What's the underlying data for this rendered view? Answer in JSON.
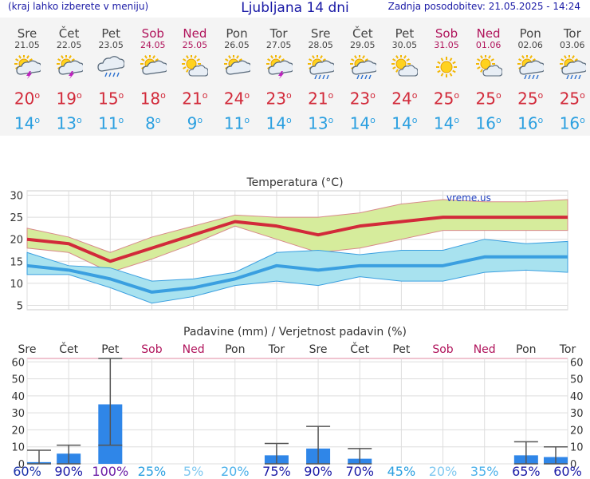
{
  "header": {
    "left_note": "(kraj lahko izberete v meniju)",
    "title": "Ljubljana 14 dni",
    "updated": "Zadnja posodobitev: 21.05.2025 - 14:24"
  },
  "colors": {
    "max": "#d22a3a",
    "min": "#2a9fe0",
    "weekend": "#b0135b",
    "bar": "#2f86e8"
  },
  "days": [
    {
      "name": "Sre",
      "date": "21.05",
      "weekend": false,
      "icon": "sun-cloud-storm-icon",
      "max": "20",
      "min": "14",
      "label_color": "#1a33aa"
    },
    {
      "name": "Čet",
      "date": "22.05",
      "weekend": false,
      "icon": "sun-cloud-storm-icon",
      "max": "19",
      "min": "13",
      "label_color": "#1a1aa6"
    },
    {
      "name": "Pet",
      "date": "23.05",
      "weekend": false,
      "icon": "cloud-rain-icon",
      "max": "15",
      "min": "11",
      "label_color": "#6a1aa6"
    },
    {
      "name": "Sob",
      "date": "24.05",
      "weekend": true,
      "icon": "sun-cloud-icon",
      "max": "18",
      "min": "8",
      "label_color": "#2a9fe0"
    },
    {
      "name": "Ned",
      "date": "25.05",
      "weekend": true,
      "icon": "sun-small-cloud-icon",
      "max": "21",
      "min": "9",
      "label_color": "#7fc8f0"
    },
    {
      "name": "Pon",
      "date": "26.05",
      "weekend": false,
      "icon": "sun-cloud-icon",
      "max": "24",
      "min": "11",
      "label_color": "#4ab0ea"
    },
    {
      "name": "Tor",
      "date": "27.05",
      "weekend": false,
      "icon": "sun-cloud-storm-icon",
      "max": "23",
      "min": "14",
      "label_color": "#1a1aa6"
    },
    {
      "name": "Sre",
      "date": "28.05",
      "weekend": false,
      "icon": "sun-cloud-rain-icon",
      "max": "21",
      "min": "13",
      "label_color": "#1a1aa6"
    },
    {
      "name": "Čet",
      "date": "29.05",
      "weekend": false,
      "icon": "sun-cloud-rain-icon",
      "max": "23",
      "min": "14",
      "label_color": "#1a1aa6"
    },
    {
      "name": "Pet",
      "date": "30.05",
      "weekend": false,
      "icon": "sun-small-cloud-icon",
      "max": "24",
      "min": "14",
      "label_color": "#2a9fe0"
    },
    {
      "name": "Sob",
      "date": "31.05",
      "weekend": true,
      "icon": "sun-icon",
      "max": "25",
      "min": "14",
      "label_color": "#7fc8f0"
    },
    {
      "name": "Ned",
      "date": "01.06",
      "weekend": true,
      "icon": "sun-small-cloud-icon",
      "max": "25",
      "min": "16",
      "label_color": "#4ab0ea"
    },
    {
      "name": "Pon",
      "date": "02.06",
      "weekend": false,
      "icon": "sun-cloud-rain-icon",
      "max": "25",
      "min": "16",
      "label_color": "#1a1aa6"
    },
    {
      "name": "Tor",
      "date": "03.06",
      "weekend": false,
      "icon": "sun-cloud-rain-icon",
      "max": "25",
      "min": "16",
      "label_color": "#1a1aa6"
    }
  ],
  "chart_data": [
    {
      "type": "line",
      "title": "Temperatura (°C)",
      "watermark": "vreme.us",
      "x": [
        "21.05",
        "22.05",
        "23.05",
        "24.05",
        "25.05",
        "26.05",
        "27.05",
        "28.05",
        "29.05",
        "30.05",
        "31.05",
        "01.06",
        "02.06",
        "03.06"
      ],
      "ylim": [
        4,
        31
      ],
      "yticks": [
        "5",
        "10",
        "15",
        "20",
        "25",
        "30"
      ],
      "series": [
        {
          "name": "max",
          "values": [
            20,
            19,
            15,
            18,
            21,
            24,
            23,
            21,
            23,
            24,
            25,
            25,
            25,
            25
          ]
        },
        {
          "name": "max_high",
          "values": [
            22.5,
            20.5,
            17,
            20.5,
            23,
            25.5,
            25,
            25,
            26,
            28,
            29,
            28.5,
            28.5,
            29
          ]
        },
        {
          "name": "max_low",
          "values": [
            18,
            17,
            12.5,
            15.5,
            19,
            23,
            20,
            17,
            18,
            20,
            22,
            22,
            22,
            22
          ]
        },
        {
          "name": "min",
          "values": [
            14,
            13,
            11,
            8,
            9,
            11,
            14,
            13,
            14,
            14,
            14,
            16,
            16,
            16
          ]
        },
        {
          "name": "min_high",
          "values": [
            17,
            14,
            13.5,
            10.5,
            11,
            12.5,
            17,
            17.5,
            16.5,
            17.5,
            17.5,
            20,
            19,
            19.5
          ]
        },
        {
          "name": "min_low",
          "values": [
            12,
            12,
            9,
            5.5,
            7,
            9.5,
            10.5,
            9.5,
            11.5,
            10.5,
            10.5,
            12.5,
            13,
            12.5
          ]
        }
      ]
    },
    {
      "type": "bar",
      "title": "Padavine (mm) / Verjetnost padavin (%)",
      "categories": [
        "Sre",
        "Čet",
        "Pet",
        "Sob",
        "Ned",
        "Pon",
        "Tor",
        "Sre",
        "Čet",
        "Pet",
        "Sob",
        "Ned",
        "Pon",
        "Tor"
      ],
      "ylim": [
        0,
        62
      ],
      "yticks": [
        "0",
        "10",
        "20",
        "30",
        "40",
        "50",
        "60"
      ],
      "values": [
        1,
        6,
        35,
        0,
        0,
        0,
        5,
        9,
        3,
        0,
        0,
        0,
        5,
        4
      ],
      "error_low": [
        0,
        0,
        11,
        0,
        0,
        0,
        0,
        0,
        0,
        0,
        0,
        0,
        0,
        0
      ],
      "error_high": [
        8,
        11,
        62,
        0,
        0,
        0,
        12,
        22,
        9,
        0,
        0,
        0,
        13,
        10
      ],
      "probability": [
        "60%",
        "90%",
        "100%",
        "25%",
        "5%",
        "20%",
        "75%",
        "90%",
        "70%",
        "45%",
        "20%",
        "35%",
        "65%",
        "60%"
      ]
    }
  ]
}
